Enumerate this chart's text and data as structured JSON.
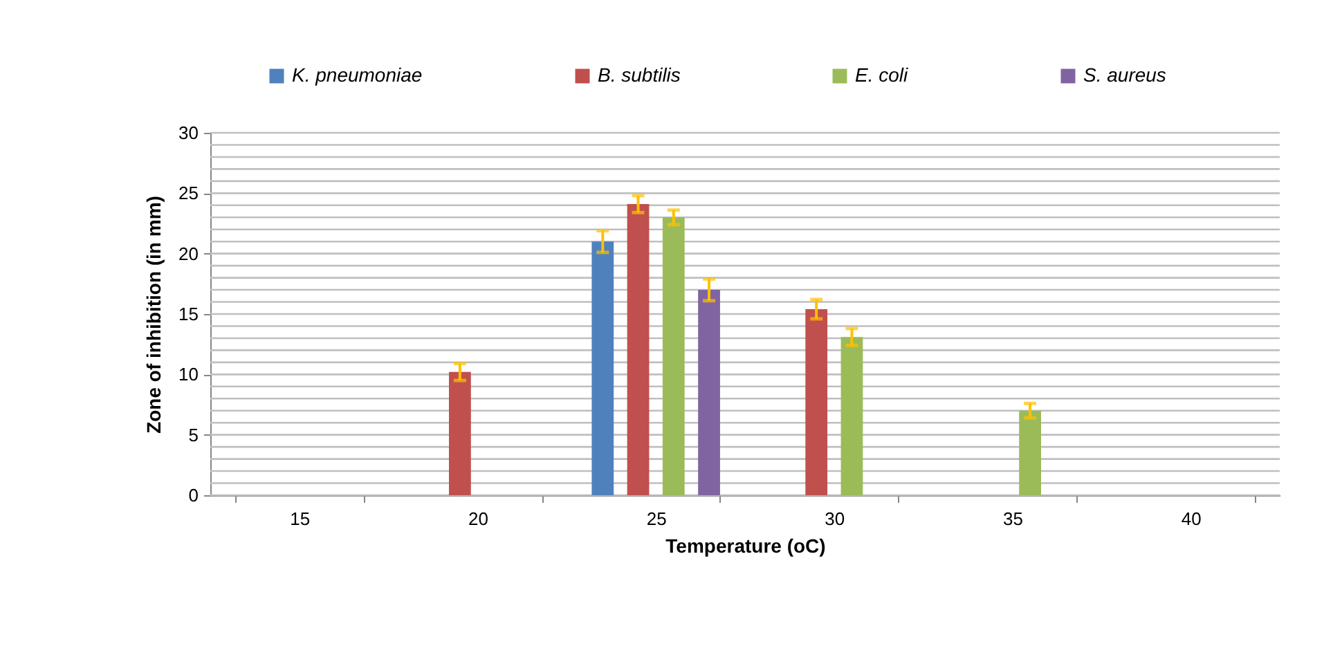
{
  "chart_data": {
    "type": "bar",
    "xlabel": "Temperature (oC)",
    "ylabel": "Zone of inhibition (in mm)",
    "categories": [
      "15",
      "20",
      "25",
      "30",
      "35",
      "40"
    ],
    "series": [
      {
        "name": "K. pneumoniae",
        "color": "#4f81bd",
        "values": [
          0,
          0,
          21.0,
          0,
          0,
          0
        ],
        "errors": [
          null,
          null,
          0.9,
          null,
          null,
          null
        ]
      },
      {
        "name": "B. subtilis",
        "color": "#c0504d",
        "values": [
          0,
          10.2,
          24.1,
          15.4,
          0,
          0
        ],
        "errors": [
          null,
          0.7,
          0.7,
          0.8,
          null,
          null
        ]
      },
      {
        "name": "E. coli",
        "color": "#9bbb59",
        "values": [
          0,
          0,
          23.0,
          13.1,
          7.0,
          0
        ],
        "errors": [
          null,
          null,
          0.6,
          0.7,
          0.6,
          null
        ]
      },
      {
        "name": "S. aureus",
        "color": "#8064a2",
        "values": [
          0,
          0,
          17.0,
          0,
          0,
          0
        ],
        "errors": [
          null,
          null,
          0.9,
          null,
          null,
          null
        ]
      }
    ],
    "ylim": [
      0,
      30
    ],
    "yticks": [
      0,
      {
        "value": 1,
        "label": null
      },
      {
        "value": 2,
        "label": null
      },
      {
        "value": 3,
        "label": null
      },
      {
        "value": 4,
        "label": null
      },
      5,
      {
        "value": 6,
        "label": null
      },
      {
        "value": 7,
        "label": null
      },
      {
        "value": 8,
        "label": null
      },
      {
        "value": 9,
        "label": null
      },
      10,
      {
        "value": 11,
        "label": null
      },
      {
        "value": 12,
        "label": null
      },
      {
        "value": 13,
        "label": null
      },
      {
        "value": 14,
        "label": null
      },
      15,
      {
        "value": 16,
        "label": null
      },
      {
        "value": 17,
        "label": null
      },
      {
        "value": 18,
        "label": null
      },
      {
        "value": 19,
        "label": null
      },
      20,
      {
        "value": 21,
        "label": null
      },
      {
        "value": 22,
        "label": null
      },
      {
        "value": 23,
        "label": null
      },
      {
        "value": 24,
        "label": null
      },
      25,
      {
        "value": 26,
        "label": null
      },
      {
        "value": 27,
        "label": null
      },
      {
        "value": 28,
        "label": null
      },
      {
        "value": 29,
        "label": null
      },
      30
    ],
    "grid": "y",
    "legend": "top"
  }
}
